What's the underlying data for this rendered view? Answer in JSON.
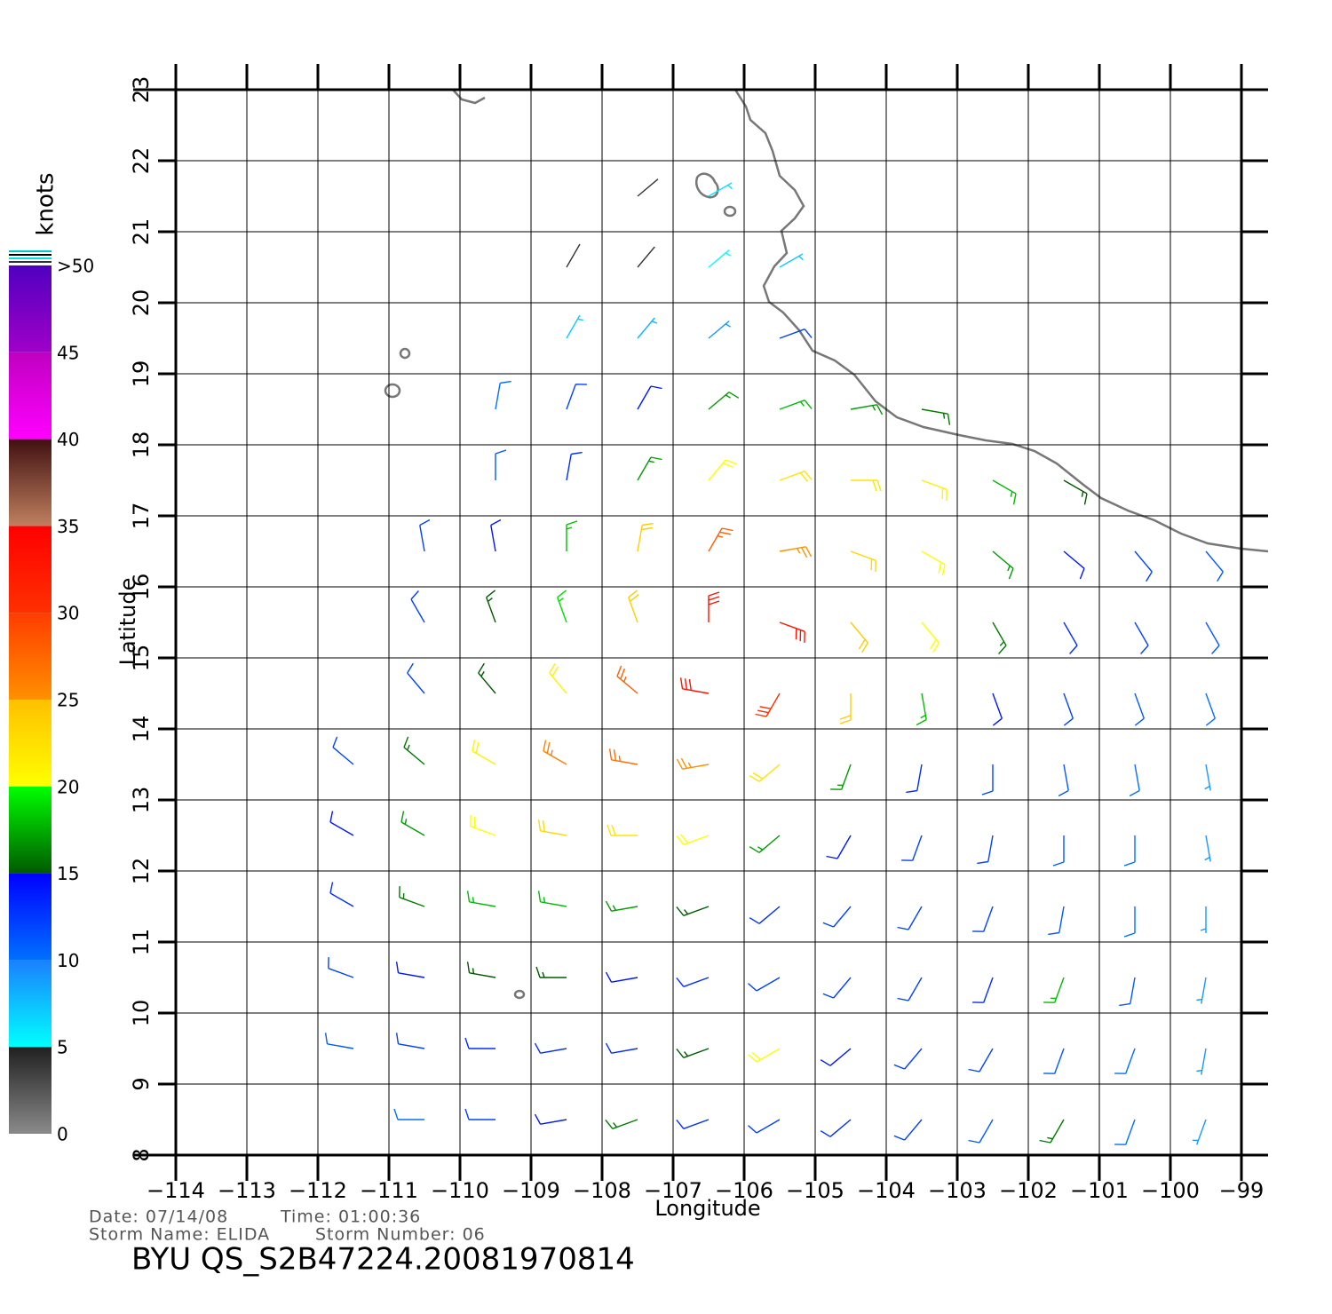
{
  "chart_data": {
    "type": "barbs",
    "title": "BYU  QS_S2B47224.20081970814",
    "date": "Date: 07/14/08",
    "time": "Time: 01:00:36",
    "storm_name": "Storm  Name:  ELIDA",
    "storm_number": "Storm  Number:  06",
    "xlabel": "Longitude",
    "ylabel": "Latitude",
    "xlim": [
      -114,
      -98.625
    ],
    "ylim": [
      8,
      23
    ],
    "xticks": [
      {
        "value": -114,
        "label": "−114"
      },
      {
        "value": -113,
        "label": "−113"
      },
      {
        "value": -112,
        "label": "−112"
      },
      {
        "value": -111,
        "label": "−111"
      },
      {
        "value": -110,
        "label": "−110"
      },
      {
        "value": -109,
        "label": "−109"
      },
      {
        "value": -108,
        "label": "−108"
      },
      {
        "value": -107,
        "label": "−107"
      },
      {
        "value": -106,
        "label": "−106"
      },
      {
        "value": -105,
        "label": "−105"
      },
      {
        "value": -104,
        "label": "−104"
      },
      {
        "value": -103,
        "label": "−103"
      },
      {
        "value": -102,
        "label": "−102"
      },
      {
        "value": -101,
        "label": "−101"
      },
      {
        "value": -100,
        "label": "−100"
      },
      {
        "value": -99,
        "label": "−99"
      }
    ],
    "yticks": [
      8,
      9,
      10,
      11,
      12,
      13,
      14,
      15,
      16,
      17,
      18,
      19,
      20,
      21,
      22,
      23
    ],
    "grid": true,
    "colorbar": {
      "label": "knots",
      "lim": [
        0,
        50
      ],
      "ticks": [
        0,
        5,
        10,
        15,
        20,
        25,
        30,
        35,
        40,
        45,
        {
          "value": 50,
          "label": ">50"
        }
      ],
      "colors": [
        [
          "#8a8a8a",
          "#202020"
        ],
        [
          "#00ffff",
          "#1a80ff"
        ],
        [
          "#0070ff",
          "#0000ff"
        ],
        [
          "#005a00",
          "#00ff00"
        ],
        [
          "#ffff00",
          "#ffc000"
        ],
        [
          "#ff9000",
          "#ff3c00"
        ],
        [
          "#ff3000",
          "#ff0000"
        ],
        [
          "#c08060",
          "#401010"
        ],
        [
          "#ff00ff",
          "#c000c0"
        ],
        [
          "#a000c8",
          "#5000c0"
        ]
      ]
    },
    "barbs": [
      {
        "lon": -107.5,
        "lat": 21.5,
        "speed": 4,
        "dir": 50
      },
      {
        "lon": -106.5,
        "lat": 21.5,
        "speed": 6,
        "dir": 60
      },
      {
        "lon": -108.5,
        "lat": 20.5,
        "speed": 4,
        "dir": 30
      },
      {
        "lon": -107.5,
        "lat": 20.5,
        "speed": 4,
        "dir": 40
      },
      {
        "lon": -106.5,
        "lat": 20.5,
        "speed": 5,
        "dir": 50
      },
      {
        "lon": -105.5,
        "lat": 20.5,
        "speed": 7,
        "dir": 60
      },
      {
        "lon": -108.5,
        "lat": 19.5,
        "speed": 7,
        "dir": 30
      },
      {
        "lon": -107.5,
        "lat": 19.5,
        "speed": 8,
        "dir": 40
      },
      {
        "lon": -106.5,
        "lat": 19.5,
        "speed": 9,
        "dir": 50
      },
      {
        "lon": -105.5,
        "lat": 19.5,
        "speed": 12,
        "dir": 70
      },
      {
        "lon": -109.5,
        "lat": 18.5,
        "speed": 10,
        "dir": 10
      },
      {
        "lon": -108.5,
        "lat": 18.5,
        "speed": 12,
        "dir": 20
      },
      {
        "lon": -107.5,
        "lat": 18.5,
        "speed": 14,
        "dir": 30
      },
      {
        "lon": -106.5,
        "lat": 18.5,
        "speed": 17,
        "dir": 50
      },
      {
        "lon": -105.5,
        "lat": 18.5,
        "speed": 18,
        "dir": 70
      },
      {
        "lon": -104.5,
        "lat": 18.5,
        "speed": 17,
        "dir": 80
      },
      {
        "lon": -103.5,
        "lat": 18.5,
        "speed": 16,
        "dir": 100
      },
      {
        "lon": -109.5,
        "lat": 17.5,
        "speed": 11,
        "dir": 0
      },
      {
        "lon": -108.5,
        "lat": 17.5,
        "speed": 13,
        "dir": 10
      },
      {
        "lon": -107.5,
        "lat": 17.5,
        "speed": 17,
        "dir": 30
      },
      {
        "lon": -106.5,
        "lat": 17.5,
        "speed": 20,
        "dir": 40
      },
      {
        "lon": -105.5,
        "lat": 17.5,
        "speed": 22,
        "dir": 70
      },
      {
        "lon": -104.5,
        "lat": 17.5,
        "speed": 22,
        "dir": 90
      },
      {
        "lon": -103.5,
        "lat": 17.5,
        "speed": 21,
        "dir": 110
      },
      {
        "lon": -102.5,
        "lat": 17.5,
        "speed": 18,
        "dir": 120
      },
      {
        "lon": -101.5,
        "lat": 17.5,
        "speed": 15,
        "dir": 120
      },
      {
        "lon": -110.5,
        "lat": 16.5,
        "speed": 12,
        "dir": 350
      },
      {
        "lon": -109.5,
        "lat": 16.5,
        "speed": 14,
        "dir": 350
      },
      {
        "lon": -108.5,
        "lat": 16.5,
        "speed": 18,
        "dir": 0
      },
      {
        "lon": -107.5,
        "lat": 16.5,
        "speed": 24,
        "dir": 10
      },
      {
        "lon": -106.5,
        "lat": 16.5,
        "speed": 28,
        "dir": 30
      },
      {
        "lon": -105.5,
        "lat": 16.5,
        "speed": 25,
        "dir": 80
      },
      {
        "lon": -104.5,
        "lat": 16.5,
        "speed": 23,
        "dir": 110
      },
      {
        "lon": -103.5,
        "lat": 16.5,
        "speed": 20,
        "dir": 120
      },
      {
        "lon": -102.5,
        "lat": 16.5,
        "speed": 17,
        "dir": 130
      },
      {
        "lon": -101.5,
        "lat": 16.5,
        "speed": 14,
        "dir": 130
      },
      {
        "lon": -100.5,
        "lat": 16.5,
        "speed": 12,
        "dir": 140
      },
      {
        "lon": -99.5,
        "lat": 16.5,
        "speed": 11,
        "dir": 140
      },
      {
        "lon": -110.5,
        "lat": 15.5,
        "speed": 12,
        "dir": 330
      },
      {
        "lon": -109.5,
        "lat": 15.5,
        "speed": 15,
        "dir": 340
      },
      {
        "lon": -108.5,
        "lat": 15.5,
        "speed": 19,
        "dir": 340
      },
      {
        "lon": -107.5,
        "lat": 15.5,
        "speed": 24,
        "dir": 340
      },
      {
        "lon": -106.5,
        "lat": 15.5,
        "speed": 33,
        "dir": 0
      },
      {
        "lon": -105.5,
        "lat": 15.5,
        "speed": 33,
        "dir": 110
      },
      {
        "lon": -104.5,
        "lat": 15.5,
        "speed": 24,
        "dir": 140
      },
      {
        "lon": -103.5,
        "lat": 15.5,
        "speed": 20,
        "dir": 140
      },
      {
        "lon": -102.5,
        "lat": 15.5,
        "speed": 16,
        "dir": 150
      },
      {
        "lon": -101.5,
        "lat": 15.5,
        "speed": 13,
        "dir": 150
      },
      {
        "lon": -100.5,
        "lat": 15.5,
        "speed": 12,
        "dir": 150
      },
      {
        "lon": -99.5,
        "lat": 15.5,
        "speed": 11,
        "dir": 150
      },
      {
        "lon": -110.5,
        "lat": 14.5,
        "speed": 12,
        "dir": 320
      },
      {
        "lon": -109.5,
        "lat": 14.5,
        "speed": 15,
        "dir": 320
      },
      {
        "lon": -108.5,
        "lat": 14.5,
        "speed": 21,
        "dir": 320
      },
      {
        "lon": -107.5,
        "lat": 14.5,
        "speed": 28,
        "dir": 310
      },
      {
        "lon": -106.5,
        "lat": 14.5,
        "speed": 33,
        "dir": 280
      },
      {
        "lon": -105.5,
        "lat": 14.5,
        "speed": 30,
        "dir": 210
      },
      {
        "lon": -104.5,
        "lat": 14.5,
        "speed": 24,
        "dir": 180
      },
      {
        "lon": -103.5,
        "lat": 14.5,
        "speed": 18,
        "dir": 170
      },
      {
        "lon": -102.5,
        "lat": 14.5,
        "speed": 14,
        "dir": 160
      },
      {
        "lon": -101.5,
        "lat": 14.5,
        "speed": 12,
        "dir": 160
      },
      {
        "lon": -100.5,
        "lat": 14.5,
        "speed": 11,
        "dir": 160
      },
      {
        "lon": -99.5,
        "lat": 14.5,
        "speed": 10,
        "dir": 160
      },
      {
        "lon": -111.5,
        "lat": 13.5,
        "speed": 12,
        "dir": 310
      },
      {
        "lon": -110.5,
        "lat": 13.5,
        "speed": 16,
        "dir": 310
      },
      {
        "lon": -109.5,
        "lat": 13.5,
        "speed": 21,
        "dir": 300
      },
      {
        "lon": -108.5,
        "lat": 13.5,
        "speed": 26,
        "dir": 300
      },
      {
        "lon": -107.5,
        "lat": 13.5,
        "speed": 27,
        "dir": 280
      },
      {
        "lon": -106.5,
        "lat": 13.5,
        "speed": 25,
        "dir": 260
      },
      {
        "lon": -105.5,
        "lat": 13.5,
        "speed": 22,
        "dir": 230
      },
      {
        "lon": -104.5,
        "lat": 13.5,
        "speed": 17,
        "dir": 200
      },
      {
        "lon": -103.5,
        "lat": 13.5,
        "speed": 13,
        "dir": 190
      },
      {
        "lon": -102.5,
        "lat": 13.5,
        "speed": 12,
        "dir": 180
      },
      {
        "lon": -101.5,
        "lat": 13.5,
        "speed": 11,
        "dir": 170
      },
      {
        "lon": -100.5,
        "lat": 13.5,
        "speed": 10,
        "dir": 170
      },
      {
        "lon": -99.5,
        "lat": 13.5,
        "speed": 9,
        "dir": 170
      },
      {
        "lon": -111.5,
        "lat": 12.5,
        "speed": 14,
        "dir": 300
      },
      {
        "lon": -110.5,
        "lat": 12.5,
        "speed": 17,
        "dir": 300
      },
      {
        "lon": -109.5,
        "lat": 12.5,
        "speed": 20,
        "dir": 290
      },
      {
        "lon": -108.5,
        "lat": 12.5,
        "speed": 23,
        "dir": 280
      },
      {
        "lon": -107.5,
        "lat": 12.5,
        "speed": 22,
        "dir": 270
      },
      {
        "lon": -106.5,
        "lat": 12.5,
        "speed": 20,
        "dir": 250
      },
      {
        "lon": -105.5,
        "lat": 12.5,
        "speed": 17,
        "dir": 230
      },
      {
        "lon": -104.5,
        "lat": 12.5,
        "speed": 14,
        "dir": 210
      },
      {
        "lon": -103.5,
        "lat": 12.5,
        "speed": 12,
        "dir": 200
      },
      {
        "lon": -102.5,
        "lat": 12.5,
        "speed": 12,
        "dir": 190
      },
      {
        "lon": -101.5,
        "lat": 12.5,
        "speed": 11,
        "dir": 180
      },
      {
        "lon": -100.5,
        "lat": 12.5,
        "speed": 10,
        "dir": 180
      },
      {
        "lon": -99.5,
        "lat": 12.5,
        "speed": 9,
        "dir": 170
      },
      {
        "lon": -111.5,
        "lat": 11.5,
        "speed": 13,
        "dir": 300
      },
      {
        "lon": -110.5,
        "lat": 11.5,
        "speed": 16,
        "dir": 290
      },
      {
        "lon": -109.5,
        "lat": 11.5,
        "speed": 18,
        "dir": 280
      },
      {
        "lon": -108.5,
        "lat": 11.5,
        "speed": 18,
        "dir": 280
      },
      {
        "lon": -107.5,
        "lat": 11.5,
        "speed": 17,
        "dir": 260
      },
      {
        "lon": -106.5,
        "lat": 11.5,
        "speed": 15,
        "dir": 250
      },
      {
        "lon": -105.5,
        "lat": 11.5,
        "speed": 13,
        "dir": 230
      },
      {
        "lon": -104.5,
        "lat": 11.5,
        "speed": 12,
        "dir": 220
      },
      {
        "lon": -103.5,
        "lat": 11.5,
        "speed": 12,
        "dir": 210
      },
      {
        "lon": -102.5,
        "lat": 11.5,
        "speed": 12,
        "dir": 200
      },
      {
        "lon": -101.5,
        "lat": 11.5,
        "speed": 11,
        "dir": 190
      },
      {
        "lon": -100.5,
        "lat": 11.5,
        "speed": 10,
        "dir": 180
      },
      {
        "lon": -99.5,
        "lat": 11.5,
        "speed": 9,
        "dir": 180
      },
      {
        "lon": -111.5,
        "lat": 10.5,
        "speed": 12,
        "dir": 290
      },
      {
        "lon": -110.5,
        "lat": 10.5,
        "speed": 14,
        "dir": 280
      },
      {
        "lon": -109.5,
        "lat": 10.5,
        "speed": 15,
        "dir": 280
      },
      {
        "lon": -108.5,
        "lat": 10.5,
        "speed": 15,
        "dir": 270
      },
      {
        "lon": -107.5,
        "lat": 10.5,
        "speed": 14,
        "dir": 260
      },
      {
        "lon": -106.5,
        "lat": 10.5,
        "speed": 13,
        "dir": 250
      },
      {
        "lon": -105.5,
        "lat": 10.5,
        "speed": 12,
        "dir": 240
      },
      {
        "lon": -104.5,
        "lat": 10.5,
        "speed": 12,
        "dir": 220
      },
      {
        "lon": -103.5,
        "lat": 10.5,
        "speed": 12,
        "dir": 210
      },
      {
        "lon": -102.5,
        "lat": 10.5,
        "speed": 13,
        "dir": 200
      },
      {
        "lon": -101.5,
        "lat": 10.5,
        "speed": 18,
        "dir": 200
      },
      {
        "lon": -100.5,
        "lat": 10.5,
        "speed": 11,
        "dir": 190
      },
      {
        "lon": -99.5,
        "lat": 10.5,
        "speed": 9,
        "dir": 190
      },
      {
        "lon": -111.5,
        "lat": 9.5,
        "speed": 11,
        "dir": 280
      },
      {
        "lon": -110.5,
        "lat": 9.5,
        "speed": 12,
        "dir": 280
      },
      {
        "lon": -109.5,
        "lat": 9.5,
        "speed": 13,
        "dir": 270
      },
      {
        "lon": -108.5,
        "lat": 9.5,
        "speed": 13,
        "dir": 260
      },
      {
        "lon": -107.5,
        "lat": 9.5,
        "speed": 13,
        "dir": 260
      },
      {
        "lon": -106.5,
        "lat": 9.5,
        "speed": 15,
        "dir": 250
      },
      {
        "lon": -105.5,
        "lat": 9.5,
        "speed": 20,
        "dir": 240
      },
      {
        "lon": -104.5,
        "lat": 9.5,
        "speed": 14,
        "dir": 230
      },
      {
        "lon": -103.5,
        "lat": 9.5,
        "speed": 12,
        "dir": 220
      },
      {
        "lon": -102.5,
        "lat": 9.5,
        "speed": 12,
        "dir": 210
      },
      {
        "lon": -101.5,
        "lat": 9.5,
        "speed": 11,
        "dir": 200
      },
      {
        "lon": -100.5,
        "lat": 9.5,
        "speed": 10,
        "dir": 200
      },
      {
        "lon": -99.5,
        "lat": 9.5,
        "speed": 9,
        "dir": 190
      },
      {
        "lon": -110.5,
        "lat": 8.5,
        "speed": 10,
        "dir": 270
      },
      {
        "lon": -109.5,
        "lat": 8.5,
        "speed": 12,
        "dir": 270
      },
      {
        "lon": -108.5,
        "lat": 8.5,
        "speed": 14,
        "dir": 260
      },
      {
        "lon": -107.5,
        "lat": 8.5,
        "speed": 16,
        "dir": 250
      },
      {
        "lon": -106.5,
        "lat": 8.5,
        "speed": 13,
        "dir": 250
      },
      {
        "lon": -105.5,
        "lat": 8.5,
        "speed": 12,
        "dir": 240
      },
      {
        "lon": -104.5,
        "lat": 8.5,
        "speed": 13,
        "dir": 230
      },
      {
        "lon": -103.5,
        "lat": 8.5,
        "speed": 12,
        "dir": 220
      },
      {
        "lon": -102.5,
        "lat": 8.5,
        "speed": 11,
        "dir": 210
      },
      {
        "lon": -101.5,
        "lat": 8.5,
        "speed": 16,
        "dir": 210
      },
      {
        "lon": -100.5,
        "lat": 8.5,
        "speed": 10,
        "dir": 200
      },
      {
        "lon": -99.5,
        "lat": 8.5,
        "speed": 9,
        "dir": 200
      }
    ]
  }
}
